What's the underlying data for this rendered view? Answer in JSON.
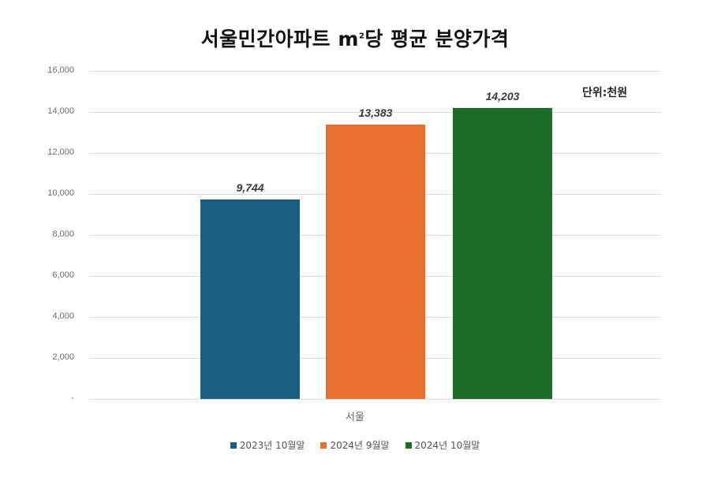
{
  "chart_data": {
    "type": "bar",
    "title": "서울민간아파트 ㎡당 평균 분양가격",
    "unit_label": "단위:천원",
    "categories": [
      "서울"
    ],
    "series": [
      {
        "name": "2023년 10월말",
        "values": [
          9744
        ],
        "label": "9,744",
        "color": "#1a5e80"
      },
      {
        "name": "2024년 9월말",
        "values": [
          13383
        ],
        "label": "13,383",
        "color": "#e8702e"
      },
      {
        "name": "2024년 10월말",
        "values": [
          14203
        ],
        "label": "14,203",
        "color": "#1c6b26"
      }
    ],
    "xlabel": "",
    "ylabel": "",
    "ylim": [
      0,
      16000
    ],
    "yticks": [
      "-",
      "2,000",
      "4,000",
      "6,000",
      "8,000",
      "10,000",
      "12,000",
      "14,000",
      "16,000"
    ],
    "grid": true,
    "legend_position": "bottom"
  },
  "title_main": "서울민간아파트 ",
  "title_unit": "m",
  "title_sup": "2",
  "title_rest": "당 평균 분양가격",
  "unit_label": "단위:천원",
  "x_category": "서울",
  "legend": [
    {
      "label": "2023년 10월말",
      "color": "#1a5e80"
    },
    {
      "label": "2024년 9월말",
      "color": "#e8702e"
    },
    {
      "label": "2024년 10월말",
      "color": "#1c6b26"
    }
  ]
}
